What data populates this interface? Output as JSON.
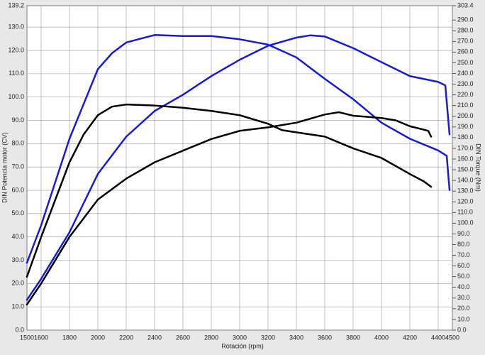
{
  "chart_data": {
    "type": "line",
    "xlabel": "Rotación (rpm)",
    "ylabel": "DIN Potencia motor (CV)",
    "y2label": "DIN Torque (Nm)",
    "xlim": [
      1500,
      4500
    ],
    "ylim": [
      0,
      139.2
    ],
    "y2lim": [
      0,
      303.4
    ],
    "grid": true,
    "xticks": [
      1500,
      1600,
      1800,
      2000,
      2200,
      2400,
      2600,
      2800,
      3000,
      3200,
      3400,
      3600,
      3800,
      4000,
      4200,
      4400,
      4500
    ],
    "yticks": [
      {
        "value": 0,
        "label": "0.0"
      },
      {
        "value": 10,
        "label": "10.0"
      },
      {
        "value": 20,
        "label": "20.0"
      },
      {
        "value": 30,
        "label": "30.0"
      },
      {
        "value": 40,
        "label": "40.0"
      },
      {
        "value": 50,
        "label": "50.0"
      },
      {
        "value": 60,
        "label": "60.0"
      },
      {
        "value": 70,
        "label": "70.0"
      },
      {
        "value": 80,
        "label": "80.0"
      },
      {
        "value": 90,
        "label": "90.0"
      },
      {
        "value": 100,
        "label": "100.0"
      },
      {
        "value": 110,
        "label": "110.0"
      },
      {
        "value": 120,
        "label": "120.0"
      },
      {
        "value": 130,
        "label": "130.0"
      },
      {
        "value": 139.2,
        "label": "139.2"
      }
    ],
    "y2ticks": [
      {
        "value": 0,
        "label": "0.0"
      },
      {
        "value": 10,
        "label": "10.0"
      },
      {
        "value": 20,
        "label": "20.0"
      },
      {
        "value": 30,
        "label": "30.0"
      },
      {
        "value": 40,
        "label": "40.0"
      },
      {
        "value": 50,
        "label": "50.0"
      },
      {
        "value": 60,
        "label": "60.0"
      },
      {
        "value": 70,
        "label": "70.0"
      },
      {
        "value": 80,
        "label": "80.0"
      },
      {
        "value": 90,
        "label": "90.0"
      },
      {
        "value": 100,
        "label": "100.0"
      },
      {
        "value": 110,
        "label": "110.0"
      },
      {
        "value": 120,
        "label": "120.0"
      },
      {
        "value": 130,
        "label": "130.0"
      },
      {
        "value": 140,
        "label": "140.0"
      },
      {
        "value": 150,
        "label": "150.0"
      },
      {
        "value": 160,
        "label": "160.0"
      },
      {
        "value": 170,
        "label": "170.0"
      },
      {
        "value": 180,
        "label": "180.0"
      },
      {
        "value": 190,
        "label": "190.0"
      },
      {
        "value": 200,
        "label": "200.0"
      },
      {
        "value": 210,
        "label": "210.0"
      },
      {
        "value": 220,
        "label": "220.0"
      },
      {
        "value": 230,
        "label": "230.0"
      },
      {
        "value": 240,
        "label": "240.0"
      },
      {
        "value": 250,
        "label": "250.0"
      },
      {
        "value": 260,
        "label": "260.0"
      },
      {
        "value": 270,
        "label": "270.0"
      },
      {
        "value": 280,
        "label": "280.0"
      },
      {
        "value": 290,
        "label": "290.0"
      },
      {
        "value": 303.4,
        "label": "303.4"
      }
    ],
    "series": [
      {
        "color": "#1a1ad6",
        "x": [
          1500,
          1600,
          1800,
          2000,
          2200,
          2400,
          2600,
          2800,
          3000,
          3200,
          3400,
          3500,
          3600,
          3800,
          4000,
          4200,
          4400,
          4450,
          4480
        ],
        "values": [
          13,
          22,
          42,
          67,
          83,
          94,
          101,
          109,
          116,
          122,
          125.5,
          126.5,
          126,
          121,
          115,
          109,
          106.5,
          105,
          84
        ]
      },
      {
        "color": "#1a1ad6",
        "axis": "y2",
        "x": [
          1500,
          1600,
          1800,
          2000,
          2100,
          2200,
          2400,
          2600,
          2800,
          3000,
          3200,
          3400,
          3600,
          3800,
          4000,
          4200,
          4400,
          4460,
          4480
        ],
        "values": [
          63,
          98,
          179,
          244,
          259,
          269,
          276,
          275,
          275,
          272,
          267,
          255,
          235,
          216,
          194,
          179,
          168,
          163,
          131
        ]
      },
      {
        "color": "#000000",
        "x": [
          1500,
          1600,
          1800,
          2000,
          2200,
          2400,
          2600,
          2800,
          3000,
          3200,
          3400,
          3600,
          3700,
          3800,
          4000,
          4100,
          4200,
          4300,
          4330,
          4350
        ],
        "values": [
          11,
          20,
          40,
          56,
          65,
          72,
          77,
          82,
          85.5,
          87,
          89,
          92.5,
          93.5,
          92,
          91,
          90,
          87.5,
          86,
          85.5,
          83
        ]
      },
      {
        "color": "#000000",
        "axis": "y2",
        "x": [
          1500,
          1600,
          1800,
          1900,
          2000,
          2100,
          2200,
          2400,
          2600,
          2800,
          3000,
          3200,
          3300,
          3600,
          3800,
          4000,
          4200,
          4300,
          4350
        ],
        "values": [
          50,
          87,
          157,
          183,
          201,
          209,
          211,
          210,
          208,
          205,
          201,
          193,
          187,
          181,
          170,
          161,
          146,
          139,
          134
        ]
      }
    ]
  }
}
